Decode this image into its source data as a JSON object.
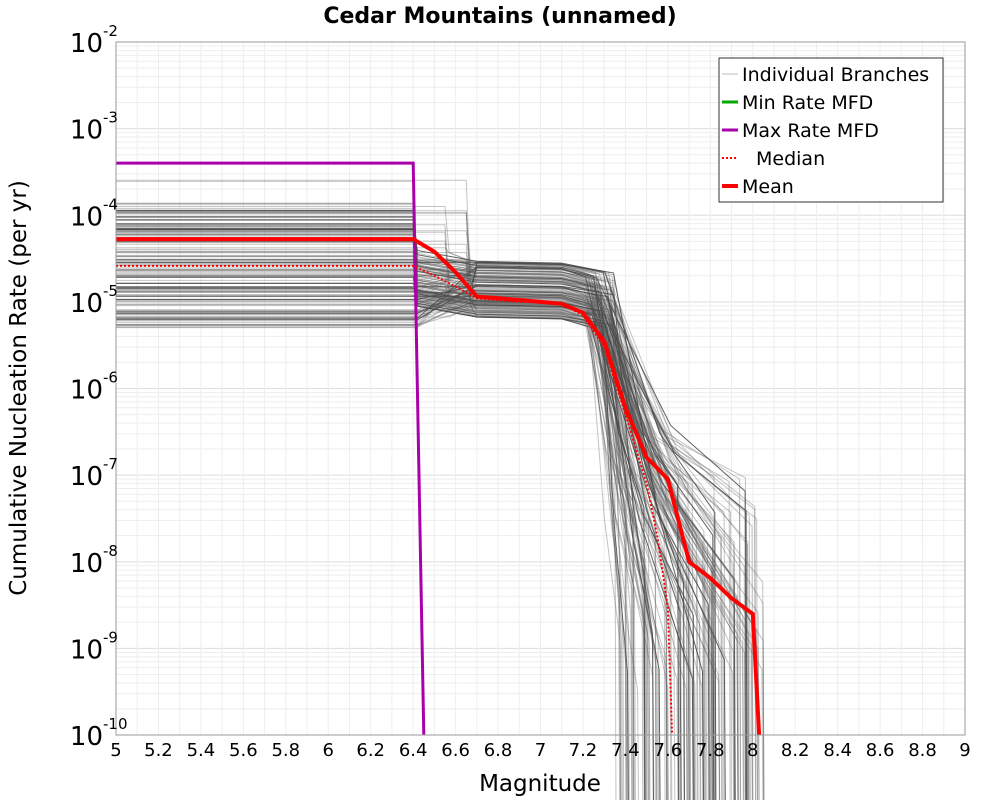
{
  "chart_data": {
    "type": "line",
    "title": "Cedar Mountains (unnamed)",
    "xlabel": "Magnitude",
    "ylabel": "Cumulative Nucleation Rate (per yr)",
    "xlim": [
      5,
      9
    ],
    "ylim_log10": [
      -10,
      -2
    ],
    "x_ticks": [
      5,
      5.2,
      5.4,
      5.6,
      5.8,
      6,
      6.2,
      6.4,
      6.6,
      6.8,
      7,
      7.2,
      7.4,
      7.6,
      7.8,
      8,
      8.2,
      8.4,
      8.6,
      8.8,
      9
    ],
    "x_tick_labels": [
      "5",
      "5.2",
      "5.4",
      "5.6",
      "5.8",
      "6",
      "6.2",
      "6.4",
      "6.6",
      "6.8",
      "7",
      "7.2",
      "7.4",
      "7.6",
      "7.8",
      "8",
      "8.2",
      "8.4",
      "8.6",
      "8.8",
      "9"
    ],
    "y_tick_exponents": [
      -2,
      -3,
      -4,
      -5,
      -6,
      -7,
      -8,
      -9,
      -10
    ],
    "y_tick_base": "10",
    "y_tick_exponent_labels": [
      "-2",
      "-3",
      "-4",
      "-5",
      "-6",
      "-7",
      "-8",
      "-9",
      "-10"
    ],
    "grid": true,
    "legend_position": "top-right",
    "legend": [
      {
        "label": "Individual Branches",
        "color": "#bbbbbb",
        "style": "thin"
      },
      {
        "label": "Min Rate MFD",
        "color": "#00aa00",
        "style": "solid"
      },
      {
        "label": "Max Rate MFD",
        "color": "#aa00aa",
        "style": "solid"
      },
      {
        "label": "Median",
        "color": "#ff0000",
        "style": "dotted"
      },
      {
        "label": "Mean",
        "color": "#ff0000",
        "style": "thick"
      }
    ],
    "series": [
      {
        "name": "Max Rate MFD",
        "color": "#aa00aa",
        "x": [
          5.0,
          6.4,
          6.45
        ],
        "y": [
          0.0004,
          0.0004,
          1e-10
        ]
      },
      {
        "name": "Median",
        "color": "#ff0000",
        "x": [
          5.0,
          6.4,
          6.5,
          6.6,
          6.7,
          6.8,
          6.9,
          7.0,
          7.1,
          7.2,
          7.3,
          7.4,
          7.5,
          7.55,
          7.6,
          7.62
        ],
        "y": [
          2.6e-05,
          2.6e-05,
          2e-05,
          1.5e-05,
          1.1e-05,
          1.05e-05,
          1e-05,
          1e-05,
          9.5e-06,
          7e-06,
          3e-06,
          5e-07,
          8e-08,
          2e-08,
          3e-09,
          1e-10
        ]
      },
      {
        "name": "Mean",
        "color": "#ff0000",
        "x": [
          5.0,
          6.4,
          6.5,
          6.6,
          6.7,
          6.8,
          6.9,
          7.0,
          7.1,
          7.2,
          7.3,
          7.4,
          7.5,
          7.6,
          7.7,
          7.8,
          7.9,
          8.0,
          8.03
        ],
        "y": [
          5.3e-05,
          5.3e-05,
          3.8e-05,
          2.2e-05,
          1.15e-05,
          1.1e-05,
          1.05e-05,
          1e-05,
          9.5e-06,
          7.5e-06,
          3.5e-06,
          6e-07,
          1.6e-07,
          9e-08,
          1e-08,
          6.5e-09,
          3.8e-09,
          2.5e-09,
          1e-10
        ]
      }
    ],
    "branches": {
      "name": "Individual Branches",
      "count": 150,
      "note": "Dense bundle of logic-tree branch MFDs; flat plateau from M5 at rates ~5e-6 to ~3e-4, drop near M6.4-6.6, second plateau ~1e-5 to 3e-5 until ~M7.2, steep decline between M7.3 and M8.0"
    }
  }
}
